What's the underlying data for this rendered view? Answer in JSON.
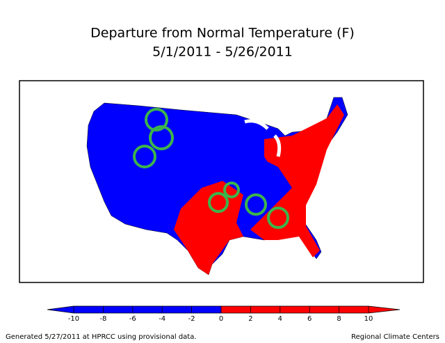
{
  "title": "Departure from Normal Temperature (F)",
  "subtitle": "5/1/2011 - 5/26/2011",
  "colorbar": {
    "min": -10,
    "max": 10,
    "ticks": [
      -10,
      -8,
      -6,
      -4,
      -2,
      0,
      2,
      4,
      6,
      8,
      10
    ],
    "colors": [
      "#0000ff",
      "#0000ff",
      "#0000ff",
      "#0000ff",
      "#0000ff",
      "#ff0000",
      "#ff0000",
      "#ff0000",
      "#ff0000",
      "#ff0000"
    ]
  },
  "footer": {
    "left": "Generated 5/27/2011 at HPRCC using provisional data.",
    "right": "Regional Climate Centers"
  }
}
